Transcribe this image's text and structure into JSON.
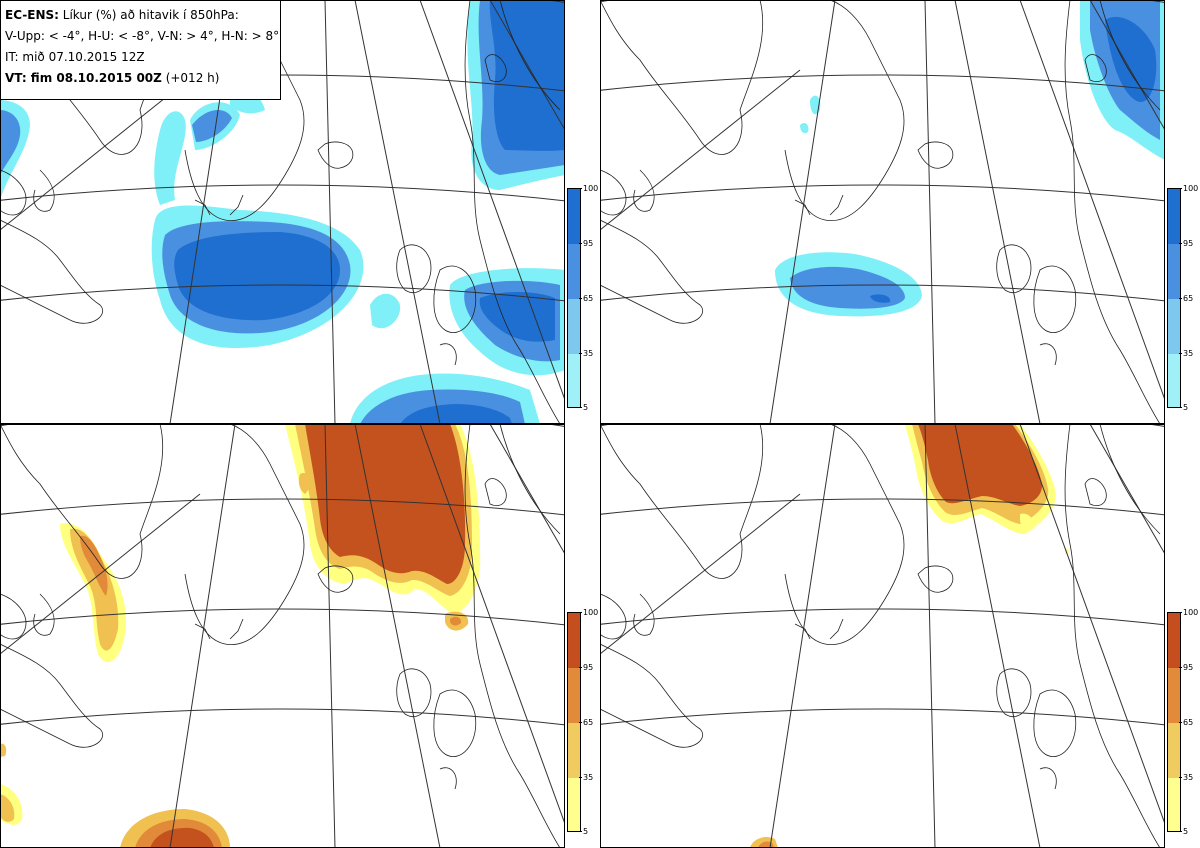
{
  "legend": {
    "model": "EC-ENS:",
    "title": " Líkur (%) að hitavik í 850hPa:",
    "classes": "V-Upp: < -4°, H-U: < -8°, V-N: > 4°, H-N: > 8°",
    "init_time": "IT: mið 07.10.2015 12Z",
    "valid_label": "VT: fim 08.10.2015 00Z",
    "lead": " (+012 h)"
  },
  "panels": [
    {
      "id": "v-upp",
      "meaning": "V-Upp: < -4°"
    },
    {
      "id": "h-u",
      "meaning": "H-U: < -8°"
    },
    {
      "id": "v-n",
      "meaning": "V-N: > 4°"
    },
    {
      "id": "h-n",
      "meaning": "H-N: > 8°"
    }
  ],
  "colorbars": {
    "cold": {
      "ticks": [
        "100",
        "95",
        "65",
        "35",
        "5"
      ],
      "colors": [
        "#1e6fd0",
        "#4a90e0",
        "#7ec8f0",
        "#a0f0f8"
      ]
    },
    "warm": {
      "ticks": [
        "100",
        "95",
        "65",
        "35",
        "5"
      ],
      "colors": [
        "#c44e1e",
        "#e08a3a",
        "#f0cc60",
        "#ffff90"
      ]
    }
  },
  "colors": {
    "cold_dark": "#1e6fd0",
    "cold_mid": "#4a90e0",
    "cold_light": "#7ec8f0",
    "cold_lightest": "#80f0f8",
    "warm_dark": "#c4521e",
    "warm_mid": "#e08a3a",
    "warm_light": "#f0c050",
    "warm_lightest": "#ffff80"
  }
}
